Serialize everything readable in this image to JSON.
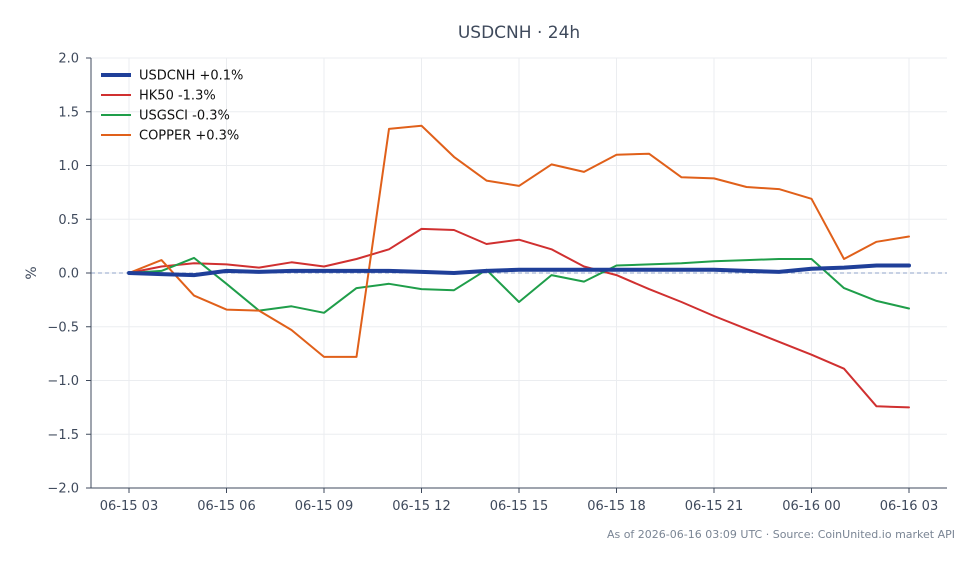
{
  "chart_data": {
    "type": "line",
    "title": "USDCNH · 24h",
    "ylabel": "%",
    "xlabel": "",
    "ylim": [
      -2.0,
      2.0
    ],
    "y_ticks": [
      2.0,
      1.5,
      1.0,
      0.5,
      0.0,
      -0.5,
      -1.0,
      -1.5,
      -2.0
    ],
    "y_tick_labels": [
      "2.0",
      "1.5",
      "1.0",
      "0.5",
      "0.0",
      "−0.5",
      "−1.0",
      "−1.5",
      "−2.0"
    ],
    "x_tick_labels": [
      "06-15 03",
      "06-15 06",
      "06-15 09",
      "06-15 12",
      "06-15 15",
      "06-15 18",
      "06-15 21",
      "06-16 00",
      "06-16 03"
    ],
    "x": [
      "06-15 03",
      "06-15 04",
      "06-15 05",
      "06-15 06",
      "06-15 07",
      "06-15 08",
      "06-15 09",
      "06-15 10",
      "06-15 11",
      "06-15 12",
      "06-15 13",
      "06-15 14",
      "06-15 15",
      "06-15 16",
      "06-15 17",
      "06-15 18",
      "06-15 19",
      "06-15 20",
      "06-15 21",
      "06-15 22",
      "06-15 23",
      "06-16 00",
      "06-16 01",
      "06-16 02",
      "06-16 03"
    ],
    "grid": true,
    "zero_line": "dashed",
    "legend_position": "top-left",
    "series": [
      {
        "name": "USDCNH +0.1%",
        "color": "#1f3f99",
        "width": 4,
        "values": [
          0.0,
          -0.01,
          -0.02,
          0.02,
          0.01,
          0.02,
          0.02,
          0.02,
          0.02,
          0.01,
          0.0,
          0.02,
          0.03,
          0.03,
          0.03,
          0.03,
          0.03,
          0.03,
          0.03,
          0.02,
          0.01,
          0.04,
          0.05,
          0.07,
          0.07
        ]
      },
      {
        "name": "HK50 -1.3%",
        "color": "#d03030",
        "width": 2,
        "values": [
          0.0,
          0.06,
          0.09,
          0.08,
          0.05,
          0.1,
          0.06,
          0.13,
          0.22,
          0.41,
          0.4,
          0.27,
          0.31,
          0.22,
          0.06,
          -0.02,
          -0.15,
          -0.27,
          -0.4,
          -0.52,
          -0.64,
          -0.76,
          -0.89,
          -1.24,
          -1.25
        ]
      },
      {
        "name": "USGSCI -0.3%",
        "color": "#1f9e4a",
        "width": 2,
        "values": [
          0.0,
          0.02,
          0.14,
          -0.1,
          -0.35,
          -0.31,
          -0.37,
          -0.14,
          -0.1,
          -0.15,
          -0.16,
          0.03,
          -0.27,
          -0.02,
          -0.08,
          0.07,
          0.08,
          0.09,
          0.11,
          0.12,
          0.13,
          0.13,
          -0.14,
          -0.26,
          -0.33
        ]
      },
      {
        "name": "COPPER +0.3%",
        "color": "#e0601a",
        "width": 2,
        "values": [
          0.0,
          0.12,
          -0.21,
          -0.34,
          -0.35,
          -0.53,
          -0.78,
          -0.78,
          1.34,
          1.37,
          1.08,
          0.86,
          0.81,
          1.01,
          0.94,
          1.1,
          1.11,
          0.89,
          0.88,
          0.8,
          0.78,
          0.69,
          0.13,
          0.29,
          0.34
        ]
      }
    ]
  },
  "footer": "As of 2026-06-16 03:09 UTC · Source: CoinUnited.io market API"
}
